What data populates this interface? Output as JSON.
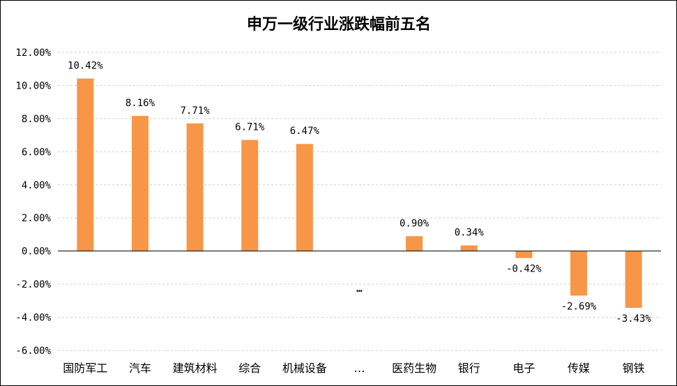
{
  "chart_data": {
    "type": "bar",
    "title": "申万一级行业涨跌幅前五名",
    "categories": [
      "国防军工",
      "汽车",
      "建筑材料",
      "综合",
      "机械设备",
      "…",
      "医药生物",
      "银行",
      "电子",
      "传媒",
      "钢铁"
    ],
    "values": [
      10.42,
      8.16,
      7.71,
      6.71,
      6.47,
      null,
      0.9,
      0.34,
      -0.42,
      -2.69,
      -3.43
    ],
    "data_labels": [
      "10.42%",
      "8.16%",
      "7.71%",
      "6.71%",
      "6.47%",
      "…",
      "0.90%",
      "0.34%",
      "-0.42%",
      "-2.69%",
      "-3.43%"
    ],
    "ylim": [
      -6,
      12
    ],
    "y_ticks": [
      {
        "value": 12,
        "label": "12.00%"
      },
      {
        "value": 10,
        "label": "10.00%"
      },
      {
        "value": 8,
        "label": "8.00%"
      },
      {
        "value": 6,
        "label": "6.00%"
      },
      {
        "value": 4,
        "label": "4.00%"
      },
      {
        "value": 2,
        "label": "2.00%"
      },
      {
        "value": 0,
        "label": "0.00%"
      },
      {
        "value": -2,
        "label": "-2.00%"
      },
      {
        "value": -4,
        "label": "-4.00%"
      },
      {
        "value": -6,
        "label": "-6.00%"
      }
    ],
    "grid": true,
    "bar_color": "#F79646",
    "xlabel": "",
    "ylabel": ""
  }
}
